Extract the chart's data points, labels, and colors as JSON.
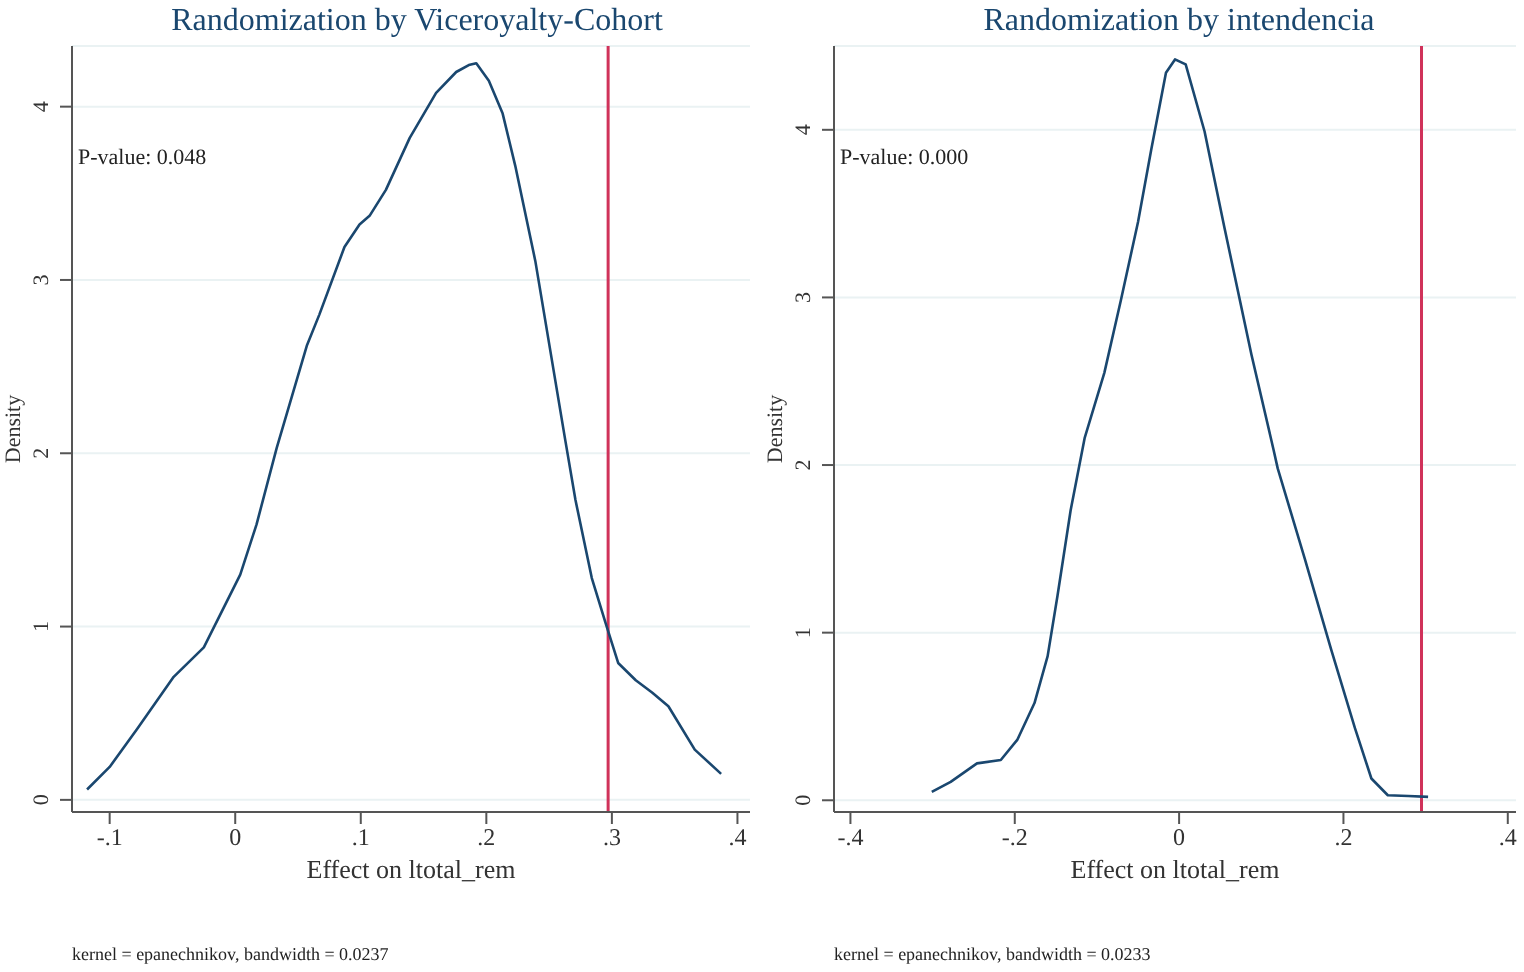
{
  "chart_data": [
    {
      "type": "line",
      "title": "Randomization by Viceroyalty-Cohort",
      "xlabel": "Effect on ltotal_rem",
      "ylabel": "Density",
      "annotations": [
        "P-value: 0.048",
        "kernel = epanechnikov, bandwidth = 0.0237"
      ],
      "xlim": [
        -0.13,
        0.41
      ],
      "ylim": [
        -0.07,
        4.35
      ],
      "xticks": [
        {
          "value": -0.1,
          "label": "-.1"
        },
        0,
        {
          "value": 0.1,
          "label": ".1"
        },
        {
          "value": 0.2,
          "label": ".2"
        },
        {
          "value": 0.3,
          "label": ".3"
        },
        {
          "value": 0.4,
          "label": ".4"
        }
      ],
      "yticks": [
        0,
        1,
        2,
        3,
        4
      ],
      "grid": "y",
      "ref_lines": [
        {
          "axis": "x",
          "value": 0.297,
          "color": "#d0325a"
        }
      ],
      "series": [
        {
          "color": "#1a476f",
          "x": [
            -0.118,
            -0.1,
            -0.078,
            -0.049,
            -0.025,
            0.004,
            0.017,
            0.033,
            0.057,
            0.067,
            0.087,
            0.099,
            0.107,
            0.12,
            0.139,
            0.16,
            0.176,
            0.186,
            0.192,
            0.202,
            0.213,
            0.223,
            0.239,
            0.263,
            0.271,
            0.284,
            0.295,
            0.305,
            0.319,
            0.332,
            0.345,
            0.366,
            0.387
          ],
          "values": [
            0.06,
            0.19,
            0.41,
            0.71,
            0.88,
            1.3,
            1.59,
            2.03,
            2.62,
            2.8,
            3.19,
            3.32,
            3.37,
            3.52,
            3.82,
            4.08,
            4.2,
            4.24,
            4.25,
            4.15,
            3.96,
            3.66,
            3.11,
            2.07,
            1.73,
            1.28,
            1.02,
            0.79,
            0.69,
            0.62,
            0.54,
            0.29,
            0.15
          ]
        }
      ]
    },
    {
      "type": "line",
      "title": "Randomization by intendencia",
      "xlabel": "Effect on ltotal_rem",
      "ylabel": "Density",
      "annotations": [
        "P-value: 0.000",
        "kernel = epanechnikov, bandwidth = 0.0233"
      ],
      "xlim": [
        -0.42,
        0.41
      ],
      "ylim": [
        -0.07,
        4.5
      ],
      "xticks": [
        {
          "value": -0.4,
          "label": "-.4"
        },
        {
          "value": -0.2,
          "label": "-.2"
        },
        0,
        {
          "value": 0.2,
          "label": ".2"
        },
        {
          "value": 0.4,
          "label": ".4"
        }
      ],
      "yticks": [
        0,
        1,
        2,
        3,
        4
      ],
      "grid": "y",
      "ref_lines": [
        {
          "axis": "x",
          "value": 0.295,
          "color": "#d0325a"
        }
      ],
      "series": [
        {
          "color": "#1a476f",
          "x": [
            -0.301,
            -0.278,
            -0.246,
            -0.217,
            -0.197,
            -0.176,
            -0.16,
            -0.148,
            -0.132,
            -0.115,
            -0.091,
            -0.071,
            -0.05,
            -0.034,
            -0.016,
            -0.005,
            0.008,
            0.031,
            0.055,
            0.088,
            0.115,
            0.12,
            0.153,
            0.185,
            0.214,
            0.234,
            0.254,
            0.279,
            0.303
          ],
          "values": [
            0.05,
            0.11,
            0.22,
            0.24,
            0.36,
            0.58,
            0.86,
            1.22,
            1.73,
            2.16,
            2.55,
            2.98,
            3.45,
            3.88,
            4.34,
            4.42,
            4.39,
            3.99,
            3.42,
            2.66,
            2.09,
            1.98,
            1.44,
            0.9,
            0.43,
            0.13,
            0.03,
            0.025,
            0.02
          ]
        }
      ]
    }
  ]
}
